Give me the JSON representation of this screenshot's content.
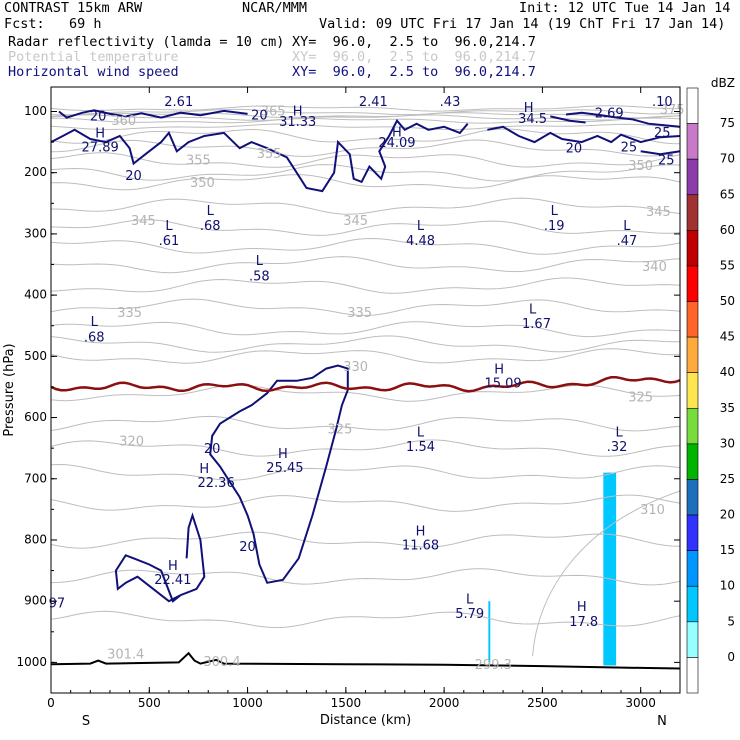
{
  "header": {
    "model": "CONTRAST 15km ARW",
    "org": "NCAR/MMM",
    "init": "Init: 12 UTC Tue 14 Jan 14",
    "fcst": "Fcst:   69 h",
    "valid": "Valid: 09 UTC Fri 17 Jan 14 (19 ChT Fri 17 Jan 14)",
    "fields": [
      {
        "name": "Radar reflectivity (lamda = 10 cm)",
        "xy": "XY=  96.0,  2.5 to  96.0,214.7",
        "color": "#000000"
      },
      {
        "name": "Potential temperature",
        "xy": "XY=  96.0,  2.5 to  96.0,214.7",
        "color": "#c8c8c8"
      },
      {
        "name": "Horizontal wind speed",
        "xy": "XY=  96.0,  2.5 to  96.0,214.7",
        "color": "#101080"
      }
    ]
  },
  "chart_data": {
    "type": "contour",
    "xlabel": "Distance (km)",
    "ylabel": "Pressure (hPa)",
    "xlim": [
      0,
      3200
    ],
    "ylim": [
      1050,
      60
    ],
    "x_ticks": [
      0,
      500,
      1000,
      1500,
      2000,
      2500,
      3000
    ],
    "y_ticks": [
      100,
      200,
      300,
      400,
      500,
      600,
      700,
      800,
      900,
      1000
    ],
    "x_end_labels": {
      "left": "S",
      "right": "N"
    },
    "colorbar": {
      "unit": "dBZ",
      "levels": [
        "0",
        "5",
        "10",
        "15",
        "20",
        "25",
        "30",
        "35",
        "40",
        "45",
        "50",
        "55",
        "60",
        "65",
        "70",
        "75"
      ],
      "colors": [
        "#ffffff",
        "#96ffff",
        "#00c8ff",
        "#0096ff",
        "#3232ff",
        "#1e6ebe",
        "#00b400",
        "#78dc3c",
        "#ffe650",
        "#ffaa3c",
        "#ff6428",
        "#ff0000",
        "#be0000",
        "#a03232",
        "#8c3caa",
        "#c87ac8",
        "#ffffff"
      ]
    },
    "hl_labels": [
      {
        "t": "2.61",
        "x": 650,
        "p": 85
      },
      {
        "t": "2.41",
        "x": 1640,
        "p": 85
      },
      {
        "t": ".43",
        "x": 2030,
        "p": 85
      },
      {
        "t": ".10",
        "x": 3110,
        "p": 85
      },
      {
        "t": "H",
        "x": 250,
        "p": 137
      },
      {
        "t": "27.89",
        "x": 250,
        "p": 160
      },
      {
        "t": "H",
        "x": 1255,
        "p": 101
      },
      {
        "t": "31.33",
        "x": 1255,
        "p": 118
      },
      {
        "t": "H",
        "x": 1760,
        "p": 135
      },
      {
        "t": "24.09",
        "x": 1760,
        "p": 152
      },
      {
        "t": "H",
        "x": 2430,
        "p": 95
      },
      {
        "t": "34.5",
        "x": 2450,
        "p": 113
      },
      {
        "t": "2.69",
        "x": 2840,
        "p": 104
      },
      {
        "t": "L",
        "x": 810,
        "p": 263
      },
      {
        "t": ".68",
        "x": 810,
        "p": 288
      },
      {
        "t": "L",
        "x": 600,
        "p": 288
      },
      {
        "t": ".61",
        "x": 600,
        "p": 312
      },
      {
        "t": "L",
        "x": 1880,
        "p": 288
      },
      {
        "t": "4.48",
        "x": 1880,
        "p": 312
      },
      {
        "t": "L",
        "x": 2560,
        "p": 263
      },
      {
        "t": ".19",
        "x": 2560,
        "p": 288
      },
      {
        "t": "L",
        "x": 2930,
        "p": 288
      },
      {
        "t": ".47",
        "x": 2930,
        "p": 312
      },
      {
        "t": "L",
        "x": 1060,
        "p": 345
      },
      {
        "t": ".58",
        "x": 1060,
        "p": 370
      },
      {
        "t": "L",
        "x": 220,
        "p": 445
      },
      {
        "t": ".68",
        "x": 220,
        "p": 470
      },
      {
        "t": "L",
        "x": 2450,
        "p": 424
      },
      {
        "t": "1.67",
        "x": 2470,
        "p": 448
      },
      {
        "t": "H",
        "x": 2280,
        "p": 522
      },
      {
        "t": "15.09",
        "x": 2300,
        "p": 545
      },
      {
        "t": "L",
        "x": 1880,
        "p": 625
      },
      {
        "t": "1.54",
        "x": 1880,
        "p": 649
      },
      {
        "t": "L",
        "x": 2890,
        "p": 625
      },
      {
        "t": ".32",
        "x": 2880,
        "p": 649
      },
      {
        "t": "H",
        "x": 1180,
        "p": 660
      },
      {
        "t": "25.45",
        "x": 1190,
        "p": 683
      },
      {
        "t": "H",
        "x": 780,
        "p": 685
      },
      {
        "t": "22.36",
        "x": 840,
        "p": 708
      },
      {
        "t": "H",
        "x": 1880,
        "p": 787
      },
      {
        "t": "11.68",
        "x": 1880,
        "p": 810
      },
      {
        "t": "H",
        "x": 620,
        "p": 843
      },
      {
        "t": "22.41",
        "x": 620,
        "p": 866
      },
      {
        "t": "L",
        "x": 2130,
        "p": 898
      },
      {
        "t": "5.79",
        "x": 2130,
        "p": 922
      },
      {
        "t": "H",
        "x": 2700,
        "p": 910
      },
      {
        "t": "17.8",
        "x": 2710,
        "p": 935
      }
    ],
    "theta_labels": [
      {
        "t": "375",
        "x": 3160,
        "p": 98
      },
      {
        "t": "365",
        "x": 1130,
        "p": 101
      },
      {
        "t": "360",
        "x": 370,
        "p": 116
      },
      {
        "t": "355",
        "x": 1110,
        "p": 170
      },
      {
        "t": "355",
        "x": 750,
        "p": 181
      },
      {
        "t": "350",
        "x": 770,
        "p": 218
      },
      {
        "t": "350",
        "x": 3000,
        "p": 190
      },
      {
        "t": "345",
        "x": 470,
        "p": 280
      },
      {
        "t": "345",
        "x": 1550,
        "p": 280
      },
      {
        "t": "345",
        "x": 3090,
        "p": 265
      },
      {
        "t": "340",
        "x": 3070,
        "p": 355
      },
      {
        "t": "335",
        "x": 400,
        "p": 430
      },
      {
        "t": "335",
        "x": 1570,
        "p": 430
      },
      {
        "t": "330",
        "x": 1550,
        "p": 518
      },
      {
        "t": "325",
        "x": 1470,
        "p": 620
      },
      {
        "t": "325",
        "x": 3000,
        "p": 568
      },
      {
        "t": "320",
        "x": 410,
        "p": 640
      },
      {
        "t": "310",
        "x": 3060,
        "p": 752
      },
      {
        "t": "301.4",
        "x": 380,
        "p": 988
      },
      {
        "t": "300.4",
        "x": 870,
        "p": 1000
      },
      {
        "t": "299.3",
        "x": 2250,
        "p": 1005
      }
    ],
    "wind_labels": [
      {
        "t": "20",
        "x": 240,
        "p": 109
      },
      {
        "t": "20",
        "x": 1060,
        "p": 107
      },
      {
        "t": "20",
        "x": 420,
        "p": 206
      },
      {
        "t": "20",
        "x": 2660,
        "p": 161
      },
      {
        "t": "25",
        "x": 3110,
        "p": 136
      },
      {
        "t": "25",
        "x": 2940,
        "p": 160
      },
      {
        "t": "25",
        "x": 3130,
        "p": 181
      },
      {
        "t": "20",
        "x": 820,
        "p": 652
      },
      {
        "t": "20",
        "x": 1000,
        "p": 812
      },
      {
        "t": "97",
        "x": 30,
        "p": 905
      }
    ],
    "reflectivity_cells": [
      {
        "dbz": 7,
        "x0": 2225,
        "x1": 2235,
        "p0": 900,
        "p1": 1000
      },
      {
        "dbz": 8,
        "x0": 2810,
        "x1": 2850,
        "p0": 690,
        "p1": 1005
      },
      {
        "dbz": 8,
        "x0": 2835,
        "x1": 2875,
        "p0": 690,
        "p1": 1005
      }
    ]
  }
}
